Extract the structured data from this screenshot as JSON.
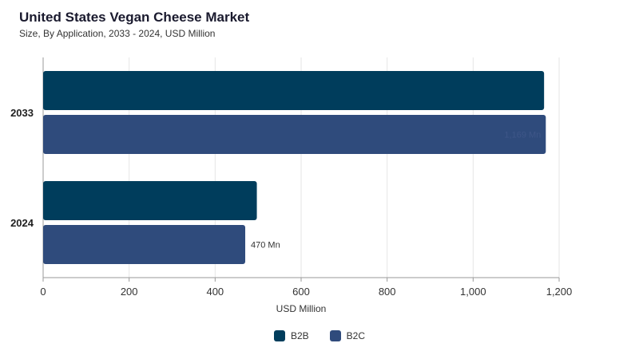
{
  "title": "United States Vegan Cheese Market",
  "subtitle": "Size, By Application, 2033 - 2024, USD Million",
  "colors": {
    "B2B": "#003d5c",
    "B2C": "#2f4b7c"
  },
  "chart_data": {
    "type": "bar",
    "orientation": "horizontal",
    "categories": [
      "2033",
      "2024"
    ],
    "series": [
      {
        "name": "B2B",
        "values": [
          1165,
          497
        ]
      },
      {
        "name": "B2C",
        "values": [
          1169,
          470
        ]
      }
    ],
    "data_labels": [
      {
        "series": "B2C",
        "category": "2033",
        "text": "1,169 Mn"
      },
      {
        "series": "B2C",
        "category": "2024",
        "text": "470 Mn"
      }
    ],
    "xlabel": "USD Million",
    "ylabel": "",
    "xlim": [
      0,
      1200
    ],
    "xticks": [
      0,
      200,
      400,
      600,
      800,
      1000,
      1200
    ],
    "xtick_labels": [
      "0",
      "200",
      "400",
      "600",
      "800",
      "1,000",
      "1,200"
    ],
    "grid": true,
    "legend_position": "bottom-center"
  }
}
